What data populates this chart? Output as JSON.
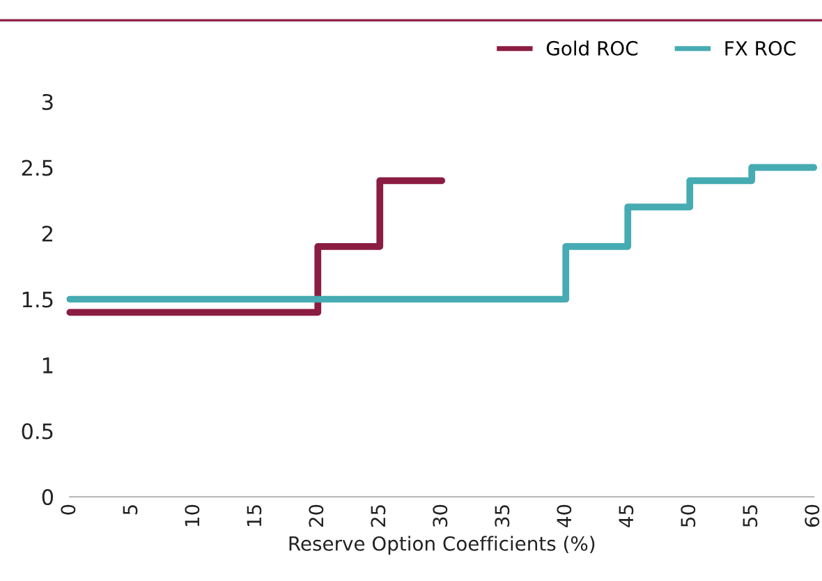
{
  "chart_data": {
    "type": "step",
    "xlabel": "Reserve Option Coefficients (%)",
    "xlim": [
      0,
      60
    ],
    "xticks": [
      0,
      5,
      10,
      15,
      20,
      25,
      30,
      35,
      40,
      45,
      50,
      55,
      60
    ],
    "ylim": [
      0,
      3
    ],
    "yticks": [
      0,
      0.5,
      1,
      1.5,
      2,
      2.5,
      3
    ],
    "grid": false,
    "legend": "top right",
    "marker": "none",
    "line_style": "solid",
    "series": [
      {
        "name": "Gold ROC",
        "color": "#8b1c42",
        "x": [
          0,
          5,
          10,
          15,
          20,
          25,
          30
        ],
        "values": [
          1.4,
          1.4,
          1.4,
          1.4,
          1.9,
          2.4,
          2.4
        ]
      },
      {
        "name": "FX ROC",
        "color": "#46abb2",
        "x": [
          0,
          5,
          10,
          15,
          20,
          25,
          30,
          35,
          40,
          45,
          50,
          55,
          60
        ],
        "values": [
          1.5,
          1.5,
          1.5,
          1.5,
          1.5,
          1.5,
          1.5,
          1.5,
          1.9,
          2.2,
          2.4,
          2.5,
          2.5
        ]
      }
    ]
  }
}
